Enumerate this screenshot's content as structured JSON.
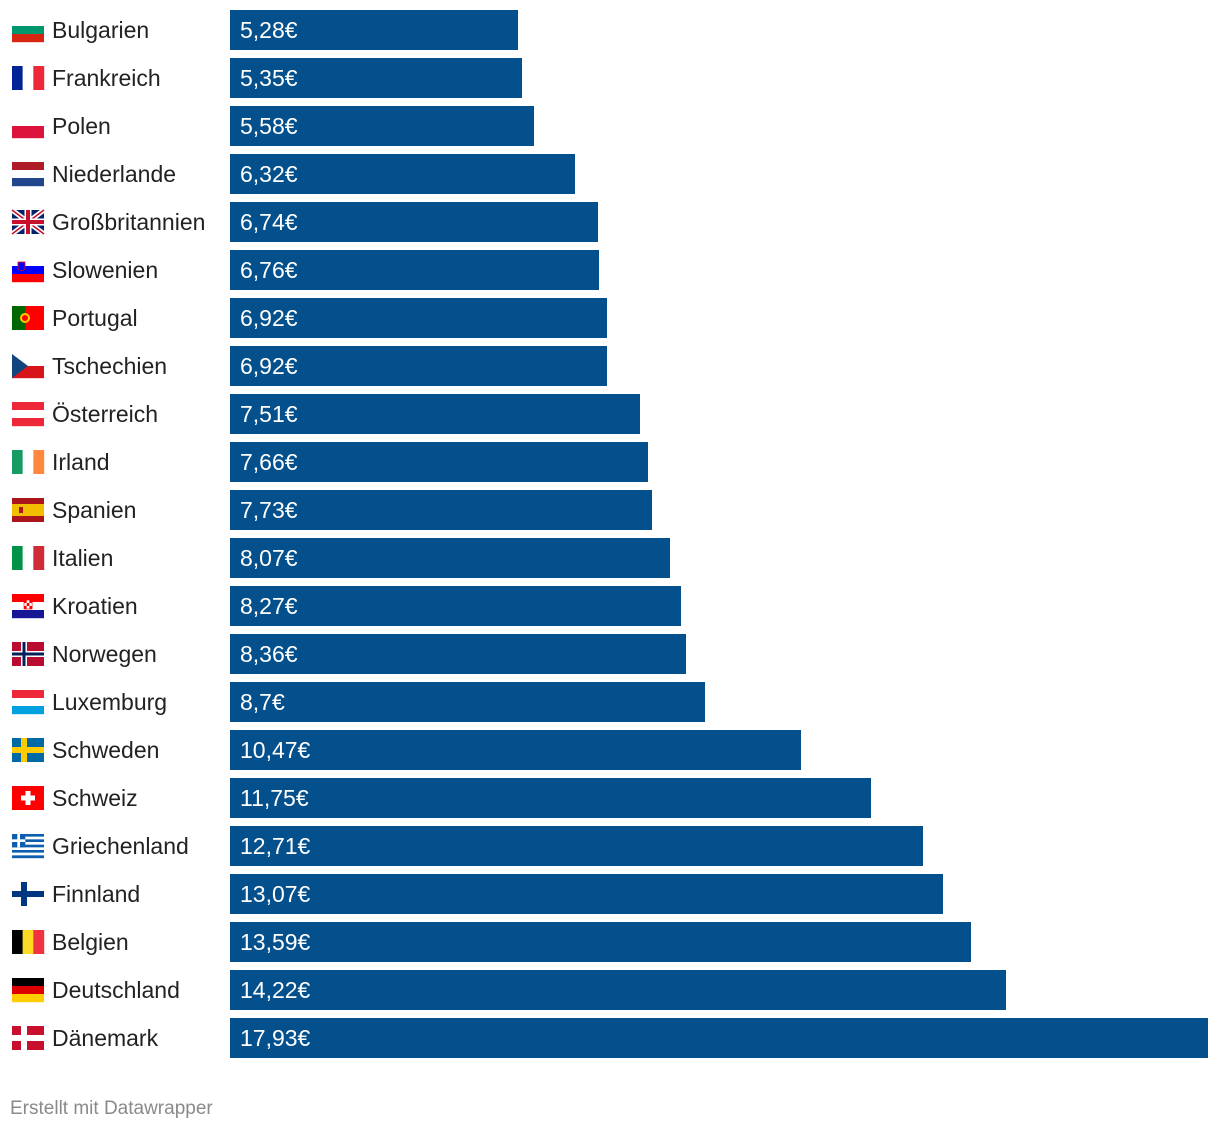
{
  "chart_data": {
    "type": "bar",
    "orientation": "horizontal",
    "unit_suffix": "€",
    "bar_color": "#03508c",
    "categories": [
      {
        "name": "Bulgarien",
        "value": 5.28,
        "label": "5,28€",
        "flag": "flag-bg-icon"
      },
      {
        "name": "Frankreich",
        "value": 5.35,
        "label": "5,35€",
        "flag": "flag-fr-icon"
      },
      {
        "name": "Polen",
        "value": 5.58,
        "label": "5,58€",
        "flag": "flag-pl-icon"
      },
      {
        "name": "Niederlande",
        "value": 6.32,
        "label": "6,32€",
        "flag": "flag-nl-icon"
      },
      {
        "name": "Großbritannien",
        "value": 6.74,
        "label": "6,74€",
        "flag": "flag-gb-icon"
      },
      {
        "name": "Slowenien",
        "value": 6.76,
        "label": "6,76€",
        "flag": "flag-si-icon"
      },
      {
        "name": "Portugal",
        "value": 6.92,
        "label": "6,92€",
        "flag": "flag-pt-icon"
      },
      {
        "name": "Tschechien",
        "value": 6.92,
        "label": "6,92€",
        "flag": "flag-cz-icon"
      },
      {
        "name": "Österreich",
        "value": 7.51,
        "label": "7,51€",
        "flag": "flag-at-icon"
      },
      {
        "name": "Irland",
        "value": 7.66,
        "label": "7,66€",
        "flag": "flag-ie-icon"
      },
      {
        "name": "Spanien",
        "value": 7.73,
        "label": "7,73€",
        "flag": "flag-es-icon"
      },
      {
        "name": "Italien",
        "value": 8.07,
        "label": "8,07€",
        "flag": "flag-it-icon"
      },
      {
        "name": "Kroatien",
        "value": 8.27,
        "label": "8,27€",
        "flag": "flag-hr-icon"
      },
      {
        "name": "Norwegen",
        "value": 8.36,
        "label": "8,36€",
        "flag": "flag-no-icon"
      },
      {
        "name": "Luxemburg",
        "value": 8.7,
        "label": "8,7€",
        "flag": "flag-lu-icon"
      },
      {
        "name": "Schweden",
        "value": 10.47,
        "label": "10,47€",
        "flag": "flag-se-icon"
      },
      {
        "name": "Schweiz",
        "value": 11.75,
        "label": "11,75€",
        "flag": "flag-ch-icon"
      },
      {
        "name": "Griechenland",
        "value": 12.71,
        "label": "12,71€",
        "flag": "flag-gr-icon"
      },
      {
        "name": "Finnland",
        "value": 13.07,
        "label": "13,07€",
        "flag": "flag-fi-icon"
      },
      {
        "name": "Belgien",
        "value": 13.59,
        "label": "13,59€",
        "flag": "flag-be-icon"
      },
      {
        "name": "Deutschland",
        "value": 14.22,
        "label": "14,22€",
        "flag": "flag-de-icon"
      },
      {
        "name": "Dänemark",
        "value": 17.93,
        "label": "17,93€",
        "flag": "flag-dk-icon"
      }
    ],
    "xlim": [
      0,
      17.93
    ],
    "grid": false,
    "legend": "none"
  },
  "footer": {
    "credit": "Erstellt mit Datawrapper"
  }
}
